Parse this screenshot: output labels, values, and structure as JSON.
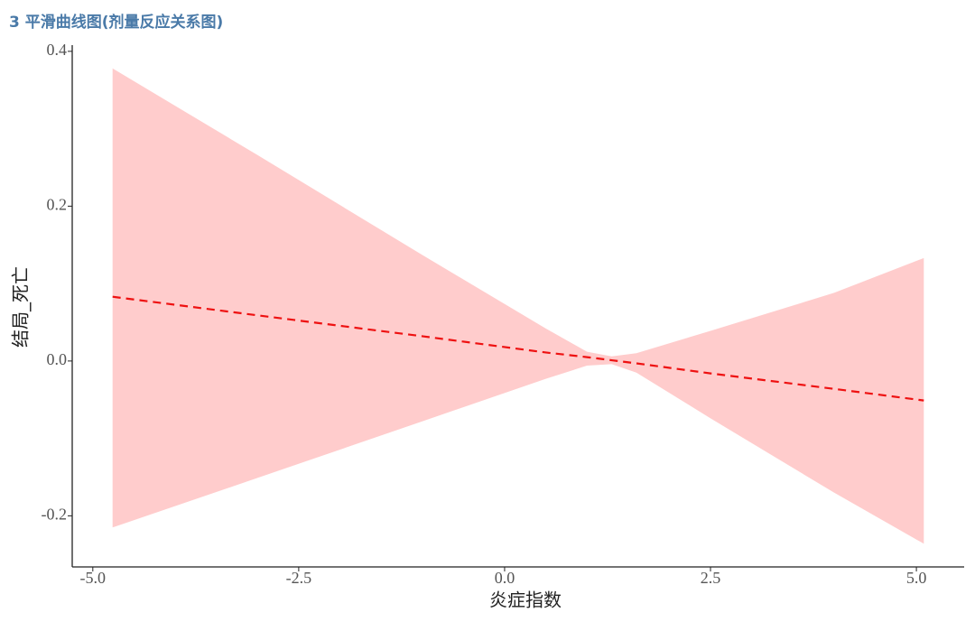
{
  "chart_data": {
    "type": "line",
    "title": "3 平滑曲线图(剂量反应关系图)",
    "x_label": "炎症指数",
    "y_label": "结局_死亡",
    "x": [
      -4.76,
      -3,
      -1,
      0.5,
      1.0,
      1.3,
      1.6,
      2.5,
      4,
      5.09
    ],
    "values": [
      0.083,
      0.059,
      0.032,
      0.011,
      0.005,
      0.001,
      -0.003,
      -0.016,
      -0.036,
      -0.051
    ],
    "upper": [
      0.378,
      0.266,
      0.137,
      0.042,
      0.012,
      0.006,
      0.01,
      0.039,
      0.088,
      0.133
    ],
    "lower": [
      -0.215,
      -0.151,
      -0.078,
      -0.023,
      -0.006,
      -0.004,
      -0.015,
      -0.074,
      -0.17,
      -0.236
    ],
    "color": "#ee1111",
    "band_color": "#ffcccc",
    "xlim": [
      -5.25,
      5.58
    ],
    "ylim": [
      -0.266,
      0.408
    ],
    "xticks": [
      {
        "value": -5,
        "label": "-5.0"
      },
      -2.5,
      {
        "value": 0,
        "label": "0.0"
      },
      2.5,
      {
        "value": 5,
        "label": "5.0"
      }
    ],
    "yticks": [
      -0.2,
      {
        "value": 0,
        "label": "0.0"
      },
      0.2,
      0.4
    ]
  }
}
